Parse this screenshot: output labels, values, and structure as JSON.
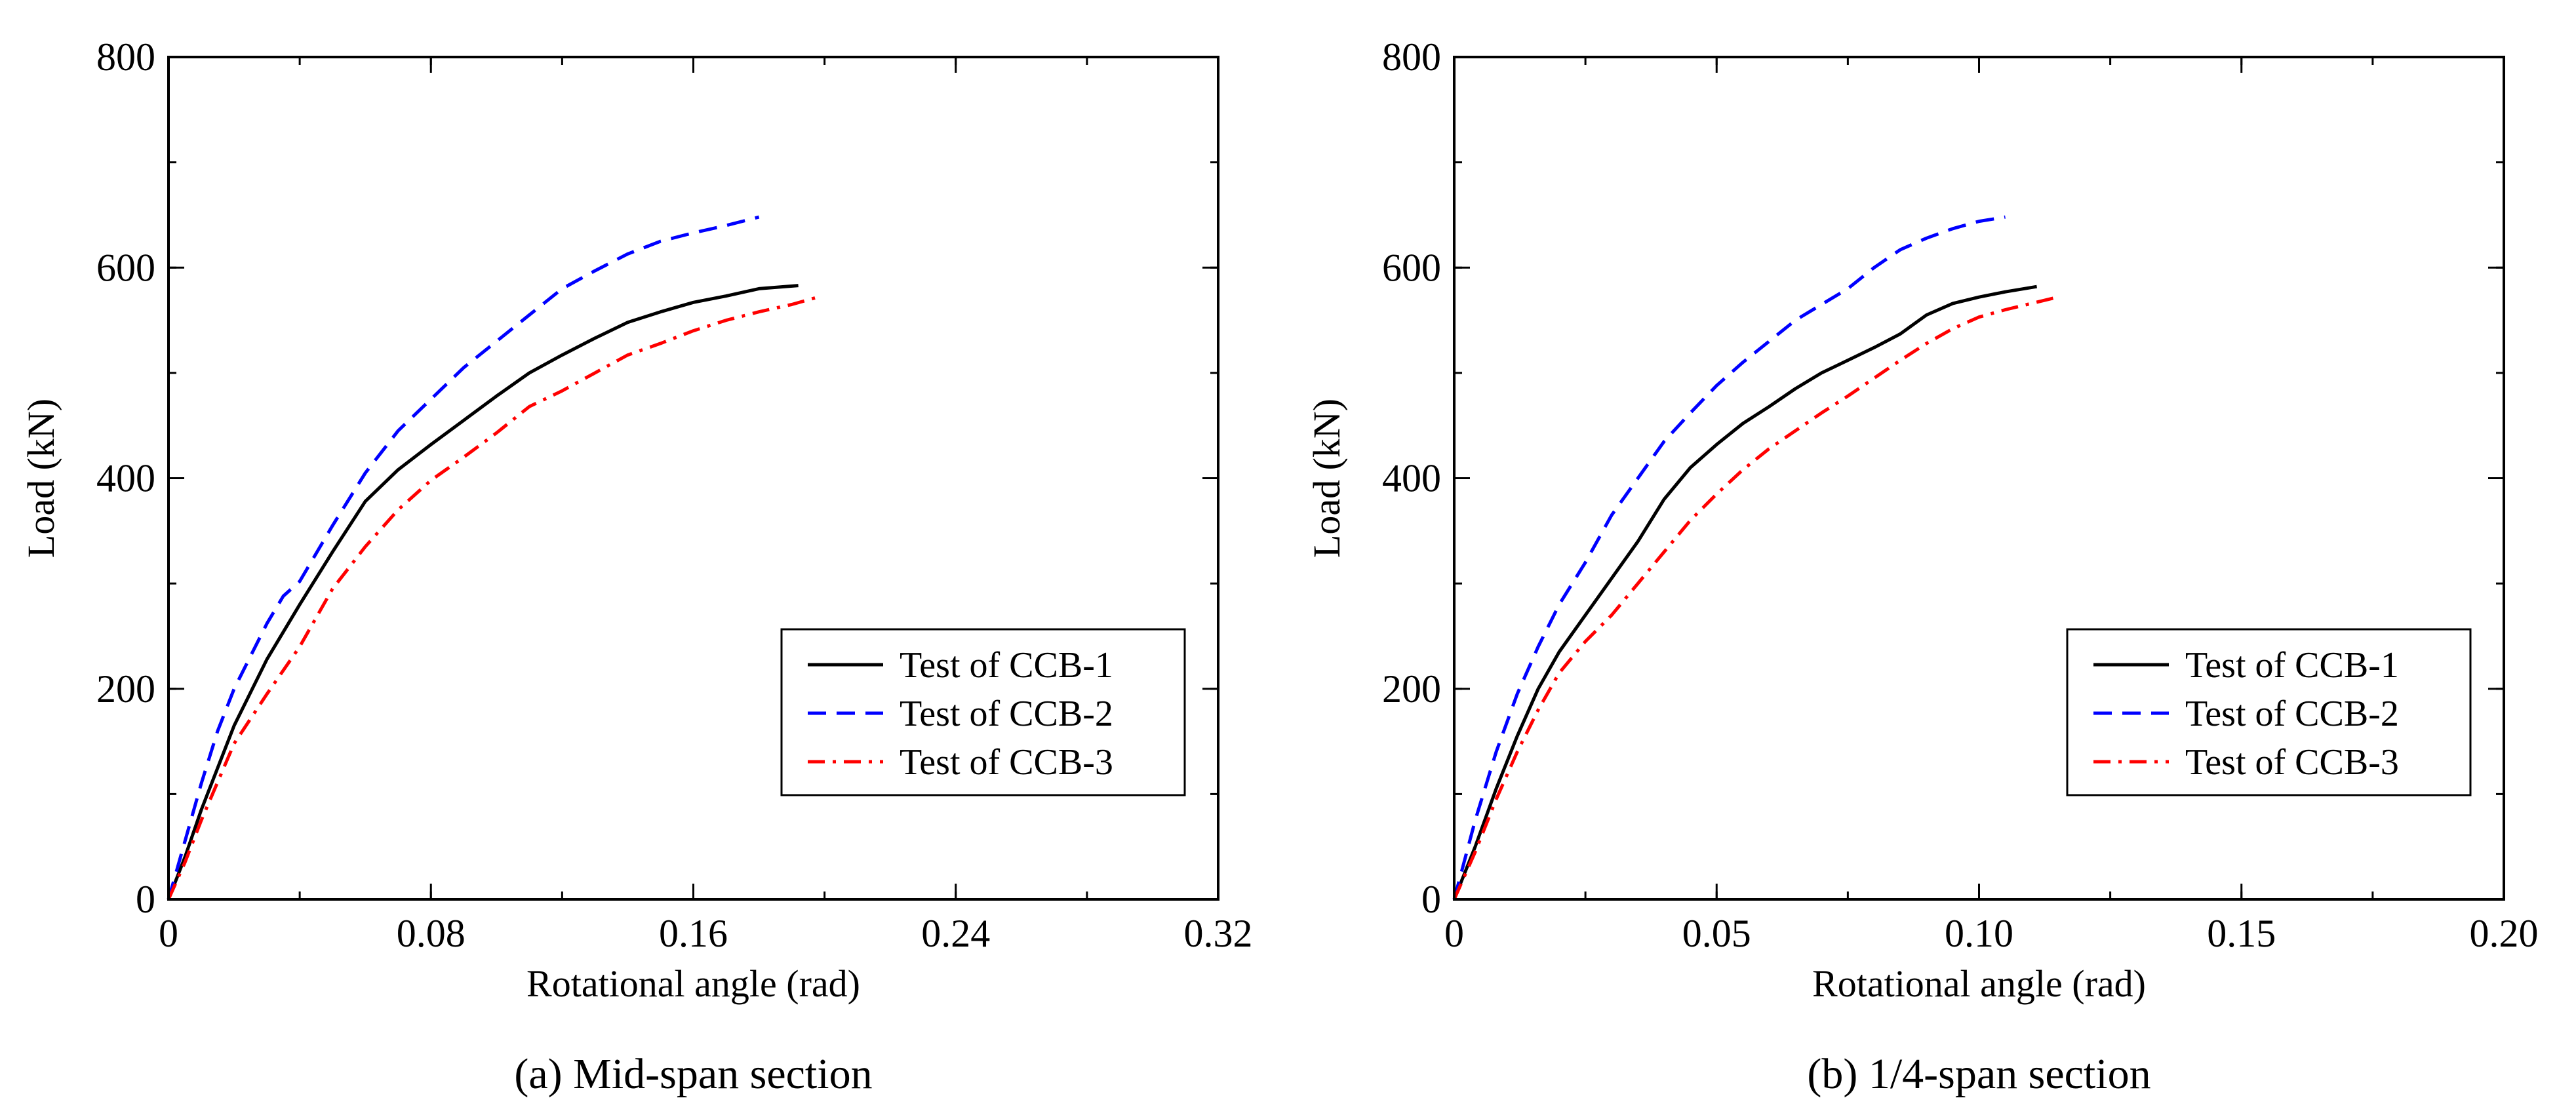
{
  "chart_data": [
    {
      "type": "line",
      "caption": "(a) Mid-span section",
      "xlabel": "Rotational angle (rad)",
      "ylabel": "Load (kN)",
      "xlim": [
        0,
        0.32
      ],
      "ylim": [
        0,
        800
      ],
      "xticks": [
        0,
        0.08,
        0.16,
        0.24,
        0.32
      ],
      "xtick_labels": [
        "0",
        "0.08",
        "0.16",
        "0.24",
        "0.32"
      ],
      "yticks": [
        0,
        200,
        400,
        600,
        800
      ],
      "ytick_labels": [
        "0",
        "200",
        "400",
        "600",
        "800"
      ],
      "x_minor_step": 0.04,
      "y_minor_step": 100,
      "legend_position": "lower-right",
      "series": [
        {
          "name": "Test of CCB-1",
          "color": "#000000",
          "dash": "solid",
          "x": [
            0,
            0.005,
            0.01,
            0.02,
            0.03,
            0.04,
            0.05,
            0.06,
            0.07,
            0.08,
            0.09,
            0.1,
            0.11,
            0.12,
            0.13,
            0.14,
            0.15,
            0.16,
            0.17,
            0.18,
            0.192
          ],
          "y": [
            0,
            40,
            85,
            165,
            228,
            280,
            330,
            378,
            408,
            432,
            455,
            478,
            500,
            517,
            533,
            548,
            558,
            567,
            573,
            580,
            583
          ]
        },
        {
          "name": "Test of CCB-2",
          "color": "#0000ff",
          "dash": "dashed",
          "x": [
            0,
            0.005,
            0.01,
            0.015,
            0.02,
            0.03,
            0.035,
            0.04,
            0.05,
            0.06,
            0.07,
            0.08,
            0.09,
            0.1,
            0.11,
            0.12,
            0.13,
            0.14,
            0.15,
            0.16,
            0.17,
            0.18
          ],
          "y": [
            0,
            55,
            110,
            160,
            200,
            262,
            288,
            302,
            355,
            405,
            445,
            475,
            505,
            530,
            555,
            580,
            597,
            613,
            625,
            633,
            640,
            648
          ]
        },
        {
          "name": "Test of CCB-3",
          "color": "#ff0000",
          "dash": "dashdot",
          "x": [
            0,
            0.005,
            0.01,
            0.02,
            0.03,
            0.04,
            0.05,
            0.06,
            0.07,
            0.08,
            0.09,
            0.1,
            0.11,
            0.12,
            0.13,
            0.14,
            0.15,
            0.16,
            0.17,
            0.18,
            0.19,
            0.198
          ],
          "y": [
            0,
            35,
            75,
            148,
            195,
            240,
            295,
            335,
            370,
            398,
            420,
            443,
            468,
            483,
            500,
            517,
            528,
            540,
            550,
            558,
            565,
            572
          ]
        }
      ]
    },
    {
      "type": "line",
      "caption": "(b) 1/4-span section",
      "xlabel": "Rotational angle (rad)",
      "ylabel": "Load (kN)",
      "xlim": [
        0,
        0.2
      ],
      "ylim": [
        0,
        800
      ],
      "xticks": [
        0,
        0.05,
        0.1,
        0.15,
        0.2
      ],
      "xtick_labels": [
        "0",
        "0.05",
        "0.10",
        "0.15",
        "0.20"
      ],
      "yticks": [
        0,
        200,
        400,
        600,
        800
      ],
      "ytick_labels": [
        "0",
        "200",
        "400",
        "600",
        "800"
      ],
      "x_minor_step": 0.025,
      "y_minor_step": 100,
      "legend_position": "lower-right",
      "series": [
        {
          "name": "Test of CCB-1",
          "color": "#000000",
          "dash": "solid",
          "x": [
            0,
            0.004,
            0.008,
            0.012,
            0.016,
            0.02,
            0.025,
            0.03,
            0.035,
            0.04,
            0.045,
            0.05,
            0.055,
            0.06,
            0.065,
            0.07,
            0.075,
            0.08,
            0.085,
            0.09,
            0.095,
            0.1,
            0.105,
            0.111
          ],
          "y": [
            0,
            50,
            105,
            155,
            200,
            235,
            270,
            305,
            340,
            380,
            410,
            432,
            452,
            468,
            485,
            500,
            512,
            524,
            537,
            555,
            566,
            572,
            577,
            582
          ]
        },
        {
          "name": "Test of CCB-2",
          "color": "#0000ff",
          "dash": "dashed",
          "x": [
            0,
            0.004,
            0.008,
            0.012,
            0.016,
            0.02,
            0.025,
            0.03,
            0.035,
            0.04,
            0.045,
            0.05,
            0.055,
            0.06,
            0.065,
            0.07,
            0.075,
            0.08,
            0.085,
            0.09,
            0.095,
            0.1,
            0.105
          ],
          "y": [
            0,
            75,
            140,
            195,
            240,
            280,
            320,
            365,
            400,
            435,
            462,
            488,
            510,
            530,
            550,
            565,
            580,
            600,
            617,
            628,
            637,
            644,
            648
          ]
        },
        {
          "name": "Test of CCB-3",
          "color": "#ff0000",
          "dash": "dashdot",
          "x": [
            0,
            0.004,
            0.008,
            0.012,
            0.016,
            0.02,
            0.025,
            0.03,
            0.035,
            0.04,
            0.045,
            0.05,
            0.055,
            0.06,
            0.065,
            0.07,
            0.075,
            0.08,
            0.085,
            0.09,
            0.095,
            0.1,
            0.105,
            0.11,
            0.115
          ],
          "y": [
            0,
            45,
            95,
            140,
            180,
            215,
            245,
            270,
            300,
            330,
            360,
            385,
            408,
            428,
            445,
            462,
            478,
            495,
            512,
            528,
            542,
            553,
            560,
            566,
            572
          ]
        }
      ]
    }
  ]
}
